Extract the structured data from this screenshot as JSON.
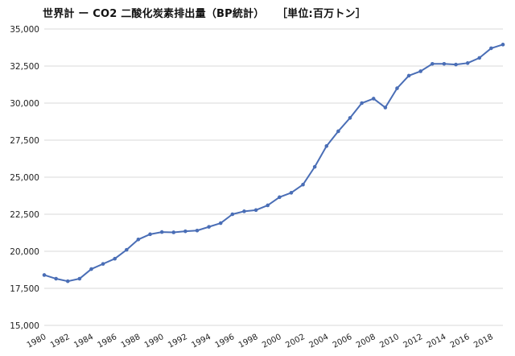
{
  "chart_data": {
    "type": "line",
    "title": "世界計 ー CO2 二酸化炭素排出量（BP統計）",
    "unit_note": "［単位:百万トン］",
    "xlabel": "",
    "ylabel": "",
    "ylim": [
      15000,
      35000
    ],
    "yticks": [
      15000,
      17500,
      20000,
      22500,
      25000,
      27500,
      30000,
      32500,
      35000
    ],
    "ytick_labels": [
      "15,000",
      "17,500",
      "20,000",
      "22,500",
      "25,000",
      "27,500",
      "30,000",
      "32,500",
      "35,000"
    ],
    "xlim": [
      1980,
      2019
    ],
    "xticks": [
      1980,
      1982,
      1984,
      1986,
      1988,
      1990,
      1992,
      1994,
      1996,
      1998,
      2000,
      2002,
      2004,
      2006,
      2008,
      2010,
      2012,
      2014,
      2016,
      2018
    ],
    "xtick_labels": [
      "1980",
      "1982",
      "1984",
      "1986",
      "1988",
      "1990",
      "1992",
      "1994",
      "1996",
      "1998",
      "2000",
      "2002",
      "2004",
      "2006",
      "2008",
      "2010",
      "2012",
      "2014",
      "2016",
      "2018"
    ],
    "grid": true,
    "legend": "none",
    "series": [
      {
        "color": "#4a6eb6",
        "x": [
          1980,
          1981,
          1982,
          1983,
          1984,
          1985,
          1986,
          1987,
          1988,
          1989,
          1990,
          1991,
          1992,
          1993,
          1994,
          1995,
          1996,
          1997,
          1998,
          1999,
          2000,
          2001,
          2002,
          2003,
          2004,
          2005,
          2006,
          2007,
          2008,
          2009,
          2010,
          2011,
          2012,
          2013,
          2014,
          2015,
          2016,
          2017,
          2018,
          2019
        ],
        "y": [
          18400,
          18150,
          17980,
          18150,
          18800,
          19150,
          19500,
          20100,
          20800,
          21150,
          21300,
          21280,
          21350,
          21400,
          21650,
          21900,
          22500,
          22700,
          22780,
          23100,
          23650,
          23950,
          24500,
          25700,
          27100,
          28100,
          29000,
          30000,
          30300,
          29700,
          31000,
          31850,
          32150,
          32650,
          32650,
          32600,
          32700,
          33050,
          33700,
          33950
        ]
      }
    ]
  }
}
